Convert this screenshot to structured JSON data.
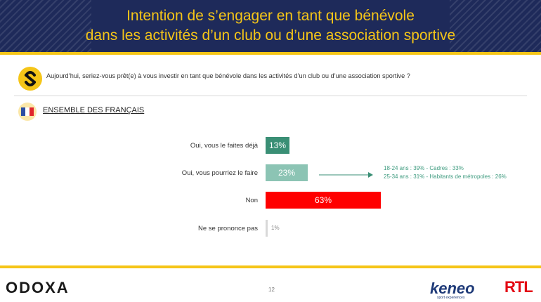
{
  "header": {
    "title_line1": "Intention de s’engager en tant que bénévole",
    "title_line2": "dans les activités d’un club ou d’une association sportive"
  },
  "question": "Aujourd’hui, seriez-vous prêt(e) à vous investir en tant que bénévole dans les activités d’un club ou d’une association sportive ?",
  "section_label": "ENSEMBLE DES FRANÇAIS",
  "colors": {
    "header_bg": "#1e2a5a",
    "gold": "#f5c518",
    "green_dark": "#3a8f75",
    "green_light": "#8cc4b4",
    "red": "#ff0000",
    "grey": "#d9d9d9"
  },
  "chart_data": {
    "type": "bar",
    "orientation": "horizontal",
    "categories": [
      "Oui, vous le faites déjà",
      "Oui, vous pourriez le faire",
      "Non",
      "Ne se prononce pas"
    ],
    "values": [
      13,
      23,
      63,
      1
    ],
    "labels": [
      "13%",
      "23%",
      "63%",
      "1%"
    ],
    "colors": [
      "#3a8f75",
      "#8cc4b4",
      "#ff0000",
      "#d9d9d9"
    ],
    "annotation": {
      "line1": "18-24 ans : 39% - Cadres : 33%",
      "line2": "25-34 ans : 31% - Habitants de métropoles : 26%"
    }
  },
  "footer": {
    "brand": "ODOXA",
    "page_number": "12",
    "partner1": "keneo",
    "partner1_sub": "sport experiences",
    "partner2": "RTL"
  }
}
